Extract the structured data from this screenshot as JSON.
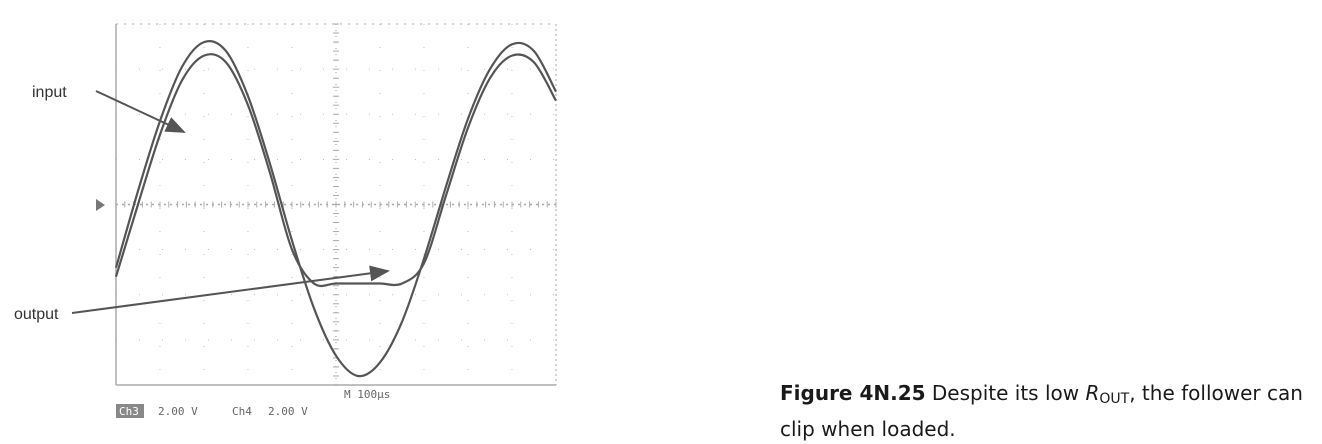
{
  "labels": {
    "input": "input",
    "output": "output"
  },
  "readout": {
    "channel_a_badge": "Ch3",
    "channel_a_scale": "2.00 V",
    "channel_b_name": "Ch4",
    "channel_b_scale": "2.00 V",
    "timebase": "M 100µs"
  },
  "caption": {
    "figure_number": "Figure 4N.25",
    "text_before": "Despite its low",
    "r_symbol": "R",
    "r_subscript": "OUT",
    "text_after": ", the follower can clip when loaded."
  },
  "colors": {
    "trace": "#555555",
    "grid": "#aaaaaa",
    "arrow": "#555555"
  },
  "chart_data": {
    "type": "line",
    "xlim": [
      0,
      10
    ],
    "ylim": [
      -4,
      4
    ],
    "series": [
      {
        "values": [
          [
            0,
            -1.4
          ],
          [
            0.5,
            0.3
          ],
          [
            1,
            1.85
          ],
          [
            1.5,
            3.05
          ],
          [
            2,
            3.6
          ],
          [
            2.5,
            3.4
          ],
          [
            3,
            2.4
          ],
          [
            3.5,
            0.9
          ],
          [
            4,
            -0.8
          ],
          [
            4.5,
            -2.3
          ],
          [
            5,
            -3.35
          ],
          [
            5.5,
            -3.8
          ],
          [
            6,
            -3.5
          ],
          [
            6.5,
            -2.6
          ],
          [
            7,
            -1.2
          ],
          [
            7.5,
            0.4
          ],
          [
            8,
            1.9
          ],
          [
            8.5,
            3.0
          ],
          [
            9,
            3.55
          ],
          [
            9.5,
            3.4
          ],
          [
            10,
            2.5
          ]
        ]
      },
      {
        "values": [
          [
            0,
            -1.6
          ],
          [
            0.5,
            0.0
          ],
          [
            1,
            1.55
          ],
          [
            1.5,
            2.75
          ],
          [
            2,
            3.3
          ],
          [
            2.5,
            3.15
          ],
          [
            3,
            2.2
          ],
          [
            3.5,
            0.7
          ],
          [
            4,
            -1.0
          ],
          [
            4.5,
            -1.75
          ],
          [
            5,
            -1.75
          ],
          [
            5.5,
            -1.75
          ],
          [
            6,
            -1.75
          ],
          [
            6.5,
            -1.75
          ],
          [
            7,
            -1.3
          ],
          [
            7.5,
            0.2
          ],
          [
            8,
            1.7
          ],
          [
            8.5,
            2.8
          ],
          [
            9,
            3.3
          ],
          [
            9.5,
            3.15
          ],
          [
            10,
            2.3
          ]
        ]
      }
    ]
  }
}
